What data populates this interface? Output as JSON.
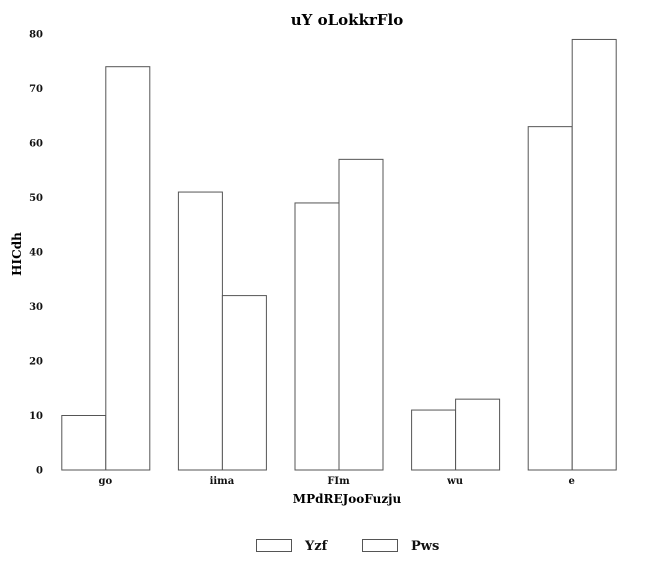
{
  "chart_data": {
    "type": "bar",
    "title": "uY oLokkrFlo",
    "xlabel": "MPdREJooFuzju",
    "ylabel": "HICdh",
    "categories": [
      "go",
      "iima",
      "FIm",
      "wu",
      "e"
    ],
    "series": [
      {
        "name": "Yzf",
        "values": [
          10,
          51,
          49,
          11,
          63
        ]
      },
      {
        "name": "Pws",
        "values": [
          74,
          32,
          57,
          13,
          79
        ]
      }
    ],
    "ylim": [
      0,
      80
    ],
    "yticks": [
      0,
      10,
      20,
      30,
      40,
      50,
      60,
      70,
      80
    ],
    "grid": false,
    "legend_position": "bottom-center",
    "colors": {
      "bar_fill": "#ffffff",
      "bar_stroke": "#555555",
      "axis": "#888888",
      "text": "#111111"
    }
  }
}
